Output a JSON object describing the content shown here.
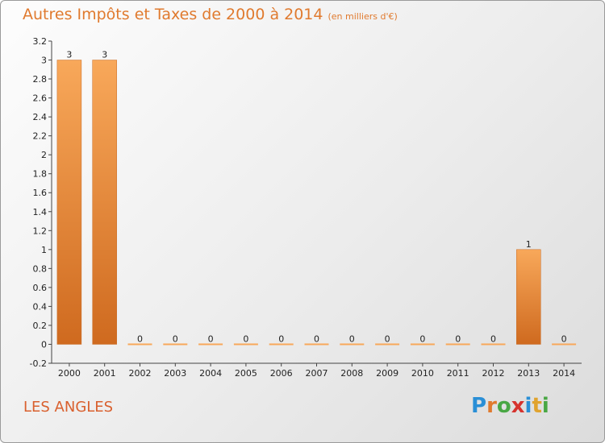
{
  "title": "Autres Impôts et Taxes de 2000 à 2014",
  "unit": "(en milliers d'€)",
  "commune": "LES ANGLES",
  "logo": {
    "letters": [
      "P",
      "r",
      "o",
      "x",
      "i",
      "t",
      "i"
    ],
    "colors": [
      "#2a8fd6",
      "#e07a2e",
      "#49a744",
      "#d6332e",
      "#2a8fd6",
      "#e0a32e",
      "#49a744"
    ]
  },
  "colors": {
    "bar_light": "#f8a85a",
    "bar_dark": "#cf6a1f",
    "title": "#e07a2e",
    "commune": "#d9602e"
  },
  "chart_data": {
    "type": "bar",
    "categories": [
      "2000",
      "2001",
      "2002",
      "2003",
      "2004",
      "2005",
      "2006",
      "2007",
      "2008",
      "2009",
      "2010",
      "2011",
      "2012",
      "2013",
      "2014"
    ],
    "values": [
      3,
      3,
      0,
      0,
      0,
      0,
      0,
      0,
      0,
      0,
      0,
      0,
      0,
      1,
      0
    ],
    "data_labels": [
      "3",
      "3",
      "0",
      "0",
      "0",
      "0",
      "0",
      "0",
      "0",
      "0",
      "0",
      "0",
      "0",
      "1",
      "0"
    ],
    "y_ticks": [
      -0.2,
      0,
      0.2,
      0.4,
      0.6,
      0.8,
      1,
      1.2,
      1.4,
      1.6,
      1.8,
      2,
      2.2,
      2.4,
      2.6,
      2.8,
      3,
      3.2
    ],
    "y_tick_labels": [
      "-0.2",
      "0",
      "0.2",
      "0.4",
      "0.6",
      "0.8",
      "1",
      "1.2",
      "1.4",
      "1.6",
      "1.8",
      "2",
      "2.2",
      "2.4",
      "2.6",
      "2.8",
      "3",
      "3.2"
    ],
    "ylim": [
      -0.2,
      3.2
    ],
    "xlabel": "",
    "ylabel": "",
    "grid": false
  }
}
